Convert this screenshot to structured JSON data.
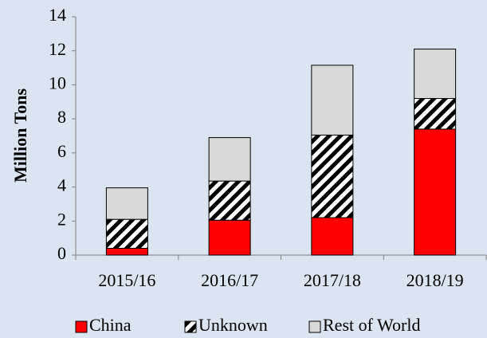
{
  "chart_data": {
    "type": "stacked_bar",
    "y_label": "Million Tons",
    "categories": [
      "2015/16",
      "2016/17",
      "2017/18",
      "2018/19"
    ],
    "series": [
      {
        "name": "China",
        "color": "#ff0000",
        "values": [
          0.4,
          2.05,
          2.2,
          7.4
        ]
      },
      {
        "name": "Unknown",
        "color": "#000000",
        "pattern": "hatch",
        "values": [
          1.7,
          2.3,
          4.85,
          1.8
        ]
      },
      {
        "name": "Rest of World",
        "color": "#d9d9d9",
        "values": [
          1.85,
          2.55,
          4.1,
          2.9
        ]
      }
    ],
    "ylim": [
      0,
      14
    ],
    "yticks": [
      0,
      2,
      4,
      6,
      8,
      10,
      12,
      14
    ],
    "grid": false,
    "legend": "bottom"
  }
}
